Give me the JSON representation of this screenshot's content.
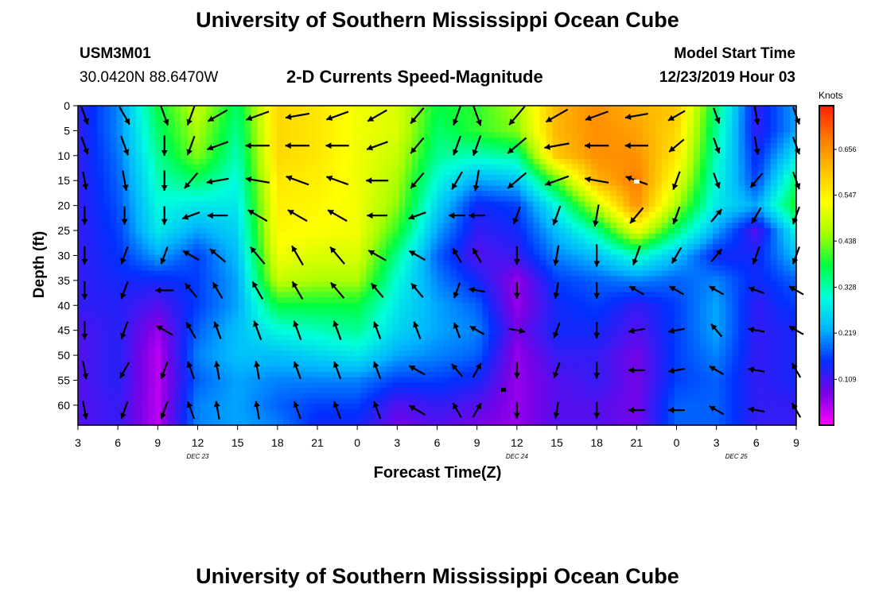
{
  "titles": {
    "top": "University of Southern Mississippi Ocean Cube",
    "bottom": "University of Southern Mississippi Ocean Cube"
  },
  "header": {
    "station_id": "USM3M01",
    "coords": "30.0420N 88.6470W",
    "product": "2-D Currents Speed-Magnitude",
    "start_label": "Model Start Time",
    "start_time": "12/23/2019 Hour 03"
  },
  "colors": {
    "scale": [
      "#ff00ff",
      "#7a00e6",
      "#0030ff",
      "#00b4ff",
      "#00ffdc",
      "#00ff40",
      "#a8ff00",
      "#ffff00",
      "#ffc000",
      "#ff7800",
      "#ff1e00"
    ],
    "arrow": "#000000",
    "axis": "#000000"
  },
  "chart_data": {
    "type": "heatmap",
    "title": "2-D Currents Speed-Magnitude",
    "xlabel": "Forecast Time(Z)",
    "ylabel": "Depth (ft)",
    "x_tick_labels": [
      "3",
      "6",
      "9",
      "12",
      "15",
      "18",
      "21",
      "0",
      "3",
      "6",
      "9",
      "12",
      "15",
      "18",
      "21",
      "0",
      "3",
      "6",
      "9"
    ],
    "x_hours": [
      0,
      3,
      6,
      9,
      12,
      15,
      18,
      21,
      24,
      27,
      30,
      33,
      36,
      39,
      42,
      45,
      48,
      51,
      54
    ],
    "date_labels": [
      {
        "label": "DEC 23",
        "hour": 9
      },
      {
        "label": "DEC 24",
        "hour": 33
      },
      {
        "label": "DEC 25",
        "hour": 49.5
      }
    ],
    "y_ticks": [
      0,
      5,
      10,
      15,
      20,
      25,
      30,
      35,
      40,
      45,
      50,
      55,
      60
    ],
    "ylim": [
      0,
      64
    ],
    "xlim": [
      0,
      54
    ],
    "colorbar": {
      "unit": "Knots",
      "tick_labels": [
        "0.109",
        "0.219",
        "0.328",
        "0.438",
        "0.547",
        "0.656"
      ],
      "tick_values": [
        0.109,
        0.219,
        0.328,
        0.438,
        0.547,
        0.656
      ],
      "range": [
        0,
        0.76
      ]
    },
    "speed_grid": {
      "x_hours": [
        0,
        3,
        6,
        9,
        12,
        15,
        18,
        21,
        24,
        27,
        30,
        33,
        36,
        39,
        42,
        45,
        48,
        51,
        54
      ],
      "depths": [
        0,
        5,
        10,
        15,
        20,
        25,
        30,
        35,
        40,
        45,
        50,
        55,
        60,
        64
      ],
      "values": [
        [
          0.12,
          0.2,
          0.38,
          0.48,
          0.36,
          0.58,
          0.56,
          0.52,
          0.5,
          0.38,
          0.4,
          0.46,
          0.62,
          0.66,
          0.62,
          0.6,
          0.36,
          0.12,
          0.22
        ],
        [
          0.12,
          0.2,
          0.36,
          0.46,
          0.34,
          0.58,
          0.56,
          0.52,
          0.5,
          0.36,
          0.4,
          0.44,
          0.62,
          0.66,
          0.64,
          0.58,
          0.34,
          0.12,
          0.22
        ],
        [
          0.12,
          0.19,
          0.34,
          0.44,
          0.32,
          0.58,
          0.56,
          0.52,
          0.48,
          0.34,
          0.32,
          0.34,
          0.6,
          0.66,
          0.66,
          0.56,
          0.32,
          0.14,
          0.28
        ],
        [
          0.12,
          0.18,
          0.32,
          0.36,
          0.3,
          0.56,
          0.55,
          0.52,
          0.46,
          0.3,
          0.22,
          0.24,
          0.42,
          0.62,
          0.68,
          0.52,
          0.3,
          0.16,
          0.36
        ],
        [
          0.12,
          0.17,
          0.3,
          0.28,
          0.28,
          0.55,
          0.54,
          0.52,
          0.44,
          0.26,
          0.14,
          0.16,
          0.3,
          0.48,
          0.66,
          0.46,
          0.28,
          0.22,
          0.4
        ],
        [
          0.12,
          0.16,
          0.28,
          0.22,
          0.26,
          0.54,
          0.53,
          0.52,
          0.4,
          0.22,
          0.12,
          0.14,
          0.24,
          0.34,
          0.52,
          0.36,
          0.22,
          0.1,
          0.3
        ],
        [
          0.12,
          0.15,
          0.22,
          0.16,
          0.24,
          0.52,
          0.5,
          0.5,
          0.34,
          0.18,
          0.1,
          0.12,
          0.2,
          0.24,
          0.32,
          0.24,
          0.14,
          0.14,
          0.24
        ],
        [
          0.12,
          0.14,
          0.14,
          0.16,
          0.22,
          0.48,
          0.46,
          0.46,
          0.3,
          0.2,
          0.14,
          0.06,
          0.16,
          0.18,
          0.2,
          0.18,
          0.2,
          0.14,
          0.18
        ],
        [
          0.12,
          0.13,
          0.1,
          0.16,
          0.22,
          0.38,
          0.38,
          0.38,
          0.28,
          0.22,
          0.18,
          0.06,
          0.14,
          0.16,
          0.12,
          0.16,
          0.22,
          0.12,
          0.16
        ],
        [
          0.1,
          0.13,
          0.06,
          0.18,
          0.24,
          0.3,
          0.32,
          0.34,
          0.26,
          0.22,
          0.2,
          0.08,
          0.14,
          0.14,
          0.1,
          0.16,
          0.22,
          0.12,
          0.14
        ],
        [
          0.1,
          0.13,
          0.04,
          0.2,
          0.24,
          0.24,
          0.26,
          0.28,
          0.22,
          0.2,
          0.18,
          0.06,
          0.12,
          0.12,
          0.08,
          0.16,
          0.2,
          0.12,
          0.14
        ],
        [
          0.1,
          0.13,
          0.04,
          0.18,
          0.22,
          0.2,
          0.2,
          0.2,
          0.16,
          0.16,
          0.14,
          0.06,
          0.1,
          0.12,
          0.08,
          0.16,
          0.18,
          0.12,
          0.14
        ],
        [
          0.1,
          0.12,
          0.04,
          0.2,
          0.22,
          0.18,
          0.16,
          0.16,
          0.1,
          0.12,
          0.1,
          0.06,
          0.1,
          0.1,
          0.08,
          0.18,
          0.18,
          0.12,
          0.12
        ],
        [
          0.1,
          0.12,
          0.04,
          0.2,
          0.22,
          0.2,
          0.14,
          0.14,
          0.08,
          0.1,
          0.08,
          0.06,
          0.1,
          0.1,
          0.08,
          0.18,
          0.18,
          0.12,
          0.12
        ]
      ]
    },
    "vectors": {
      "x_hours": [
        0.5,
        3.5,
        6.5,
        8.5,
        10.5,
        13.5,
        16.5,
        19.5,
        22.5,
        25.5,
        28.5,
        30,
        33,
        36,
        39,
        42,
        45,
        48,
        51,
        54
      ],
      "depths": [
        2,
        8,
        15,
        22,
        30,
        37,
        45,
        53,
        61
      ],
      "direction_deg": [
        [
          160,
          150,
          160,
          200,
          240,
          250,
          260,
          250,
          240,
          220,
          200,
          160,
          220,
          240,
          250,
          260,
          240,
          160,
          170,
          160
        ],
        [
          160,
          160,
          180,
          200,
          250,
          270,
          270,
          270,
          250,
          220,
          200,
          200,
          230,
          260,
          270,
          270,
          230,
          160,
          170,
          160
        ],
        [
          170,
          170,
          180,
          220,
          260,
          280,
          290,
          290,
          270,
          220,
          210,
          190,
          230,
          250,
          280,
          290,
          200,
          160,
          220,
          160
        ],
        [
          180,
          180,
          180,
          250,
          270,
          300,
          300,
          300,
          270,
          250,
          270,
          270,
          200,
          200,
          190,
          220,
          200,
          40,
          210,
          200
        ],
        [
          180,
          200,
          200,
          300,
          310,
          320,
          330,
          320,
          300,
          300,
          330,
          330,
          180,
          190,
          180,
          200,
          210,
          40,
          200,
          200
        ],
        [
          180,
          200,
          270,
          320,
          330,
          330,
          330,
          320,
          320,
          320,
          200,
          280,
          180,
          190,
          180,
          300,
          300,
          300,
          290,
          300
        ],
        [
          180,
          200,
          300,
          330,
          340,
          340,
          340,
          340,
          340,
          340,
          340,
          300,
          100,
          200,
          180,
          260,
          260,
          320,
          280,
          300
        ],
        [
          170,
          210,
          200,
          340,
          350,
          350,
          340,
          340,
          340,
          300,
          320,
          30,
          180,
          200,
          180,
          270,
          260,
          300,
          280,
          330
        ],
        [
          170,
          200,
          200,
          340,
          350,
          350,
          340,
          340,
          340,
          300,
          330,
          30,
          180,
          190,
          180,
          270,
          270,
          300,
          280,
          330
        ]
      ],
      "speed": [
        [
          0.3,
          0.4,
          0.4,
          0.4,
          0.5,
          0.6,
          0.6,
          0.55,
          0.5,
          0.4,
          0.4,
          0.45,
          0.6,
          0.65,
          0.6,
          0.55,
          0.35,
          0.2,
          0.3,
          0.3
        ],
        [
          0.3,
          0.4,
          0.4,
          0.4,
          0.5,
          0.6,
          0.6,
          0.55,
          0.5,
          0.4,
          0.4,
          0.45,
          0.6,
          0.65,
          0.6,
          0.55,
          0.35,
          0.2,
          0.3,
          0.3
        ],
        [
          0.3,
          0.4,
          0.4,
          0.4,
          0.5,
          0.6,
          0.6,
          0.55,
          0.5,
          0.4,
          0.4,
          0.45,
          0.6,
          0.65,
          0.6,
          0.55,
          0.35,
          0.2,
          0.3,
          0.3
        ],
        [
          0.3,
          0.3,
          0.3,
          0.3,
          0.4,
          0.5,
          0.5,
          0.5,
          0.4,
          0.3,
          0.2,
          0.2,
          0.3,
          0.4,
          0.5,
          0.4,
          0.3,
          0.2,
          0.3,
          0.3
        ],
        [
          0.3,
          0.3,
          0.3,
          0.3,
          0.4,
          0.5,
          0.5,
          0.5,
          0.4,
          0.3,
          0.2,
          0.2,
          0.3,
          0.4,
          0.5,
          0.4,
          0.3,
          0.2,
          0.3,
          0.3
        ],
        [
          0.3,
          0.3,
          0.3,
          0.3,
          0.3,
          0.4,
          0.4,
          0.4,
          0.3,
          0.3,
          0.2,
          0.2,
          0.2,
          0.2,
          0.2,
          0.2,
          0.2,
          0.2,
          0.2,
          0.2
        ],
        [
          0.3,
          0.3,
          0.3,
          0.3,
          0.3,
          0.4,
          0.4,
          0.4,
          0.3,
          0.3,
          0.2,
          0.2,
          0.2,
          0.2,
          0.2,
          0.2,
          0.2,
          0.2,
          0.2,
          0.2
        ],
        [
          0.3,
          0.3,
          0.3,
          0.3,
          0.3,
          0.3,
          0.3,
          0.3,
          0.3,
          0.3,
          0.2,
          0.2,
          0.2,
          0.2,
          0.2,
          0.2,
          0.2,
          0.2,
          0.2,
          0.2
        ],
        [
          0.3,
          0.3,
          0.3,
          0.3,
          0.3,
          0.3,
          0.3,
          0.3,
          0.3,
          0.3,
          0.2,
          0.2,
          0.2,
          0.2,
          0.2,
          0.2,
          0.2,
          0.2,
          0.2,
          0.2
        ]
      ]
    }
  }
}
